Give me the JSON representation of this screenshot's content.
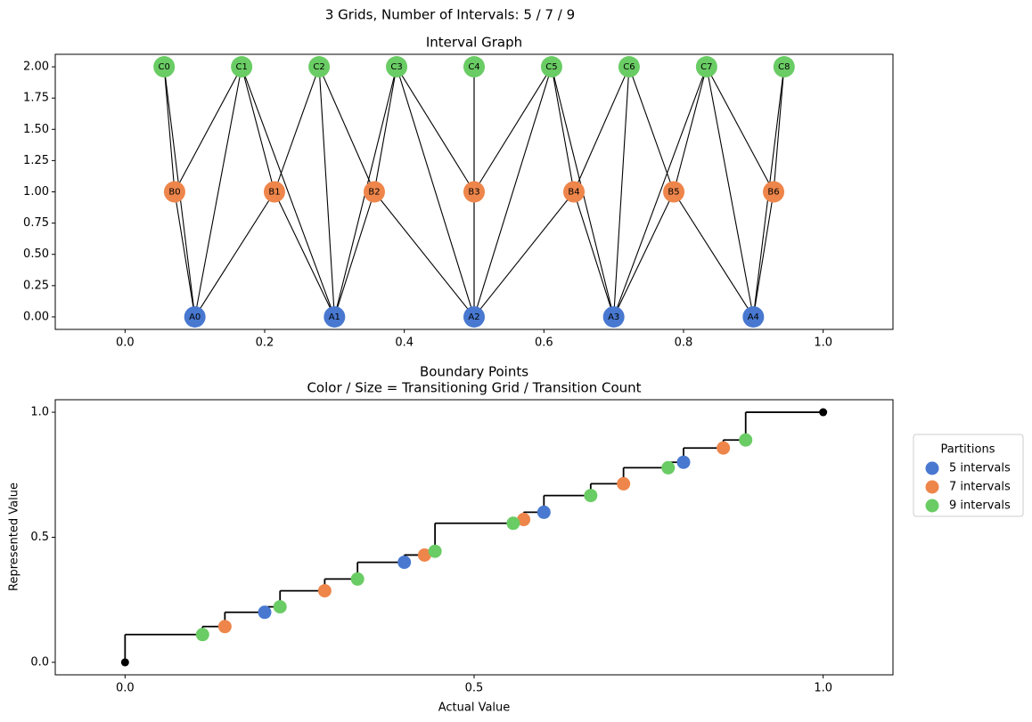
{
  "title": "3 Grids, Number of Intervals: 5 / 7 / 9",
  "chart_data": [
    {
      "type": "graph",
      "title": "Interval Graph",
      "xlim": [
        -0.1,
        1.1
      ],
      "ylim": [
        -0.1,
        2.1
      ],
      "xticks": [
        {
          "value": 0,
          "label": "0.0"
        },
        {
          "value": 0.2,
          "label": "0.2"
        },
        {
          "value": 0.4,
          "label": "0.4"
        },
        {
          "value": 0.6,
          "label": "0.6"
        },
        {
          "value": 0.8,
          "label": "0.8"
        },
        {
          "value": 1,
          "label": "1.0"
        }
      ],
      "yticks": [
        {
          "value": 0,
          "label": "0.00"
        },
        {
          "value": 0.25,
          "label": "0.25"
        },
        {
          "value": 0.5,
          "label": "0.50"
        },
        {
          "value": 0.75,
          "label": "0.75"
        },
        {
          "value": 1,
          "label": "1.00"
        },
        {
          "value": 1.25,
          "label": "1.25"
        },
        {
          "value": 1.5,
          "label": "1.50"
        },
        {
          "value": 1.75,
          "label": "1.75"
        },
        {
          "value": 2,
          "label": "2.00"
        }
      ],
      "nodes": [
        {
          "label": "A0",
          "x": 0.1,
          "y": 0,
          "color": "#4878d0"
        },
        {
          "label": "A1",
          "x": 0.3,
          "y": 0,
          "color": "#4878d0"
        },
        {
          "label": "A2",
          "x": 0.5,
          "y": 0,
          "color": "#4878d0"
        },
        {
          "label": "A3",
          "x": 0.7,
          "y": 0,
          "color": "#4878d0"
        },
        {
          "label": "A4",
          "x": 0.9,
          "y": 0,
          "color": "#4878d0"
        },
        {
          "label": "B0",
          "x": 0.071,
          "y": 1,
          "color": "#ee854a"
        },
        {
          "label": "B1",
          "x": 0.214,
          "y": 1,
          "color": "#ee854a"
        },
        {
          "label": "B2",
          "x": 0.357,
          "y": 1,
          "color": "#ee854a"
        },
        {
          "label": "B3",
          "x": 0.5,
          "y": 1,
          "color": "#ee854a"
        },
        {
          "label": "B4",
          "x": 0.643,
          "y": 1,
          "color": "#ee854a"
        },
        {
          "label": "B5",
          "x": 0.786,
          "y": 1,
          "color": "#ee854a"
        },
        {
          "label": "B6",
          "x": 0.929,
          "y": 1,
          "color": "#ee854a"
        },
        {
          "label": "C0",
          "x": 0.056,
          "y": 2,
          "color": "#6acc64"
        },
        {
          "label": "C1",
          "x": 0.167,
          "y": 2,
          "color": "#6acc64"
        },
        {
          "label": "C2",
          "x": 0.278,
          "y": 2,
          "color": "#6acc64"
        },
        {
          "label": "C3",
          "x": 0.389,
          "y": 2,
          "color": "#6acc64"
        },
        {
          "label": "C4",
          "x": 0.5,
          "y": 2,
          "color": "#6acc64"
        },
        {
          "label": "C5",
          "x": 0.611,
          "y": 2,
          "color": "#6acc64"
        },
        {
          "label": "C6",
          "x": 0.722,
          "y": 2,
          "color": "#6acc64"
        },
        {
          "label": "C7",
          "x": 0.833,
          "y": 2,
          "color": "#6acc64"
        },
        {
          "label": "C8",
          "x": 0.944,
          "y": 2,
          "color": "#6acc64"
        }
      ],
      "edges": [
        [
          "A0",
          "B0"
        ],
        [
          "A0",
          "B1"
        ],
        [
          "A1",
          "B1"
        ],
        [
          "A1",
          "B2"
        ],
        [
          "A2",
          "B2"
        ],
        [
          "A2",
          "B3"
        ],
        [
          "A2",
          "B4"
        ],
        [
          "A3",
          "B4"
        ],
        [
          "A3",
          "B5"
        ],
        [
          "A4",
          "B5"
        ],
        [
          "A4",
          "B6"
        ],
        [
          "A0",
          "C0"
        ],
        [
          "A0",
          "C1"
        ],
        [
          "A1",
          "C1"
        ],
        [
          "A1",
          "C2"
        ],
        [
          "A1",
          "C3"
        ],
        [
          "A2",
          "C3"
        ],
        [
          "A2",
          "C4"
        ],
        [
          "A2",
          "C5"
        ],
        [
          "A3",
          "C5"
        ],
        [
          "A3",
          "C6"
        ],
        [
          "A3",
          "C7"
        ],
        [
          "A4",
          "C7"
        ],
        [
          "A4",
          "C8"
        ],
        [
          "B0",
          "C0"
        ],
        [
          "B0",
          "C1"
        ],
        [
          "B1",
          "C1"
        ],
        [
          "B1",
          "C2"
        ],
        [
          "B2",
          "C2"
        ],
        [
          "B2",
          "C3"
        ],
        [
          "B3",
          "C3"
        ],
        [
          "B3",
          "C4"
        ],
        [
          "B3",
          "C5"
        ],
        [
          "B4",
          "C5"
        ],
        [
          "B4",
          "C6"
        ],
        [
          "B5",
          "C6"
        ],
        [
          "B5",
          "C7"
        ],
        [
          "B6",
          "C7"
        ],
        [
          "B6",
          "C8"
        ]
      ]
    },
    {
      "type": "step",
      "title": "Boundary Points",
      "subtitle": "Color / Size = Transitioning Grid / Transition Count",
      "x_label": "Actual Value",
      "y_label": "Represented Value",
      "xlim": [
        -0.1,
        1.1
      ],
      "ylim": [
        -0.05,
        1.05
      ],
      "xticks": [
        {
          "value": 0,
          "label": "0.0"
        },
        {
          "value": 0.5,
          "label": "0.5"
        },
        {
          "value": 1,
          "label": "1.0"
        }
      ],
      "yticks": [
        {
          "value": 0,
          "label": "0.0"
        },
        {
          "value": 0.5,
          "label": "0.5"
        },
        {
          "value": 1,
          "label": "1.0"
        }
      ],
      "step": {
        "color": "#000000",
        "x": [
          0,
          0.111,
          0.143,
          0.2,
          0.222,
          0.286,
          0.333,
          0.4,
          0.429,
          0.444,
          0.556,
          0.571,
          0.6,
          0.667,
          0.714,
          0.778,
          0.8,
          0.857,
          0.889,
          1
        ],
        "values": [
          0,
          0.111,
          0.143,
          0.2,
          0.222,
          0.286,
          0.333,
          0.4,
          0.429,
          0.444,
          0.556,
          0.571,
          0.6,
          0.667,
          0.714,
          0.778,
          0.8,
          0.857,
          0.889,
          1
        ]
      },
      "endpoints": {
        "color": "#000000",
        "x": [
          0,
          1
        ],
        "values": [
          0,
          1
        ]
      },
      "legend": "outside right",
      "legend_title": "Partitions",
      "series": [
        {
          "name": "5 intervals",
          "color": "#4878d0",
          "x": [
            0.2,
            0.4,
            0.6,
            0.8
          ],
          "values": [
            0.2,
            0.4,
            0.6,
            0.8
          ]
        },
        {
          "name": "7 intervals",
          "color": "#ee854a",
          "x": [
            0.143,
            0.286,
            0.429,
            0.571,
            0.714,
            0.857
          ],
          "values": [
            0.143,
            0.286,
            0.429,
            0.571,
            0.714,
            0.857
          ]
        },
        {
          "name": "9 intervals",
          "color": "#6acc64",
          "x": [
            0.111,
            0.222,
            0.333,
            0.444,
            0.556,
            0.667,
            0.778,
            0.889
          ],
          "values": [
            0.111,
            0.222,
            0.333,
            0.444,
            0.556,
            0.667,
            0.778,
            0.889
          ]
        }
      ]
    }
  ]
}
